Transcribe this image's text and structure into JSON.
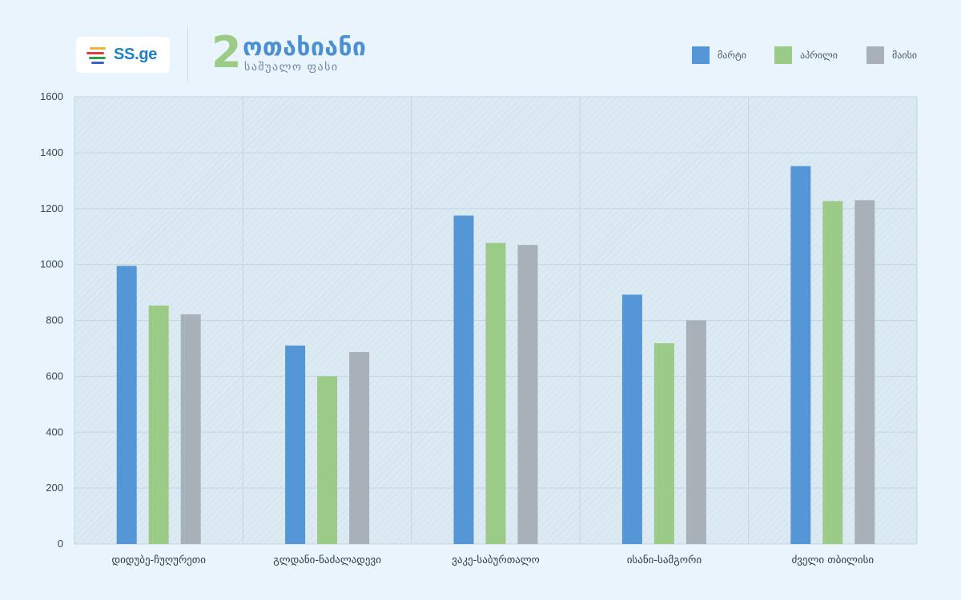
{
  "brand": {
    "logo_text": "SS.ge",
    "logo_colors": [
      "#f0b43a",
      "#e23b3b",
      "#2fa04a",
      "#3b62c8"
    ]
  },
  "header": {
    "title_number": "2",
    "title_main": "ოთახიანი",
    "title_sub": "საშუალო ფასი"
  },
  "colors": {
    "background": "#e9f4fc",
    "plot_area": "#dbeaf3",
    "grid": "#c5d5e1"
  },
  "chart_data": {
    "type": "bar",
    "categories": [
      "დიდუბე-ჩუღურეთი",
      "გლდანი-ნაძალადევი",
      "ვაკე-საბურთალო",
      "ისანი-სამგორი",
      "ძველი თბილისი"
    ],
    "series": [
      {
        "name": "მარტი",
        "color": "#5496d6",
        "values": [
          995,
          710,
          1175,
          892,
          1352
        ]
      },
      {
        "name": "აპრილი",
        "color": "#9ccb88",
        "values": [
          853,
          600,
          1077,
          718,
          1227
        ]
      },
      {
        "name": "მაისი",
        "color": "#a9b1b8",
        "values": [
          822,
          687,
          1070,
          800,
          1230
        ]
      }
    ],
    "y_ticks": [
      "0",
      "200",
      "400",
      "600",
      "800",
      "1000",
      "1200",
      "1400",
      "1600"
    ],
    "ylim": [
      0,
      1600
    ],
    "grid": true,
    "legend_position": "top-right"
  }
}
